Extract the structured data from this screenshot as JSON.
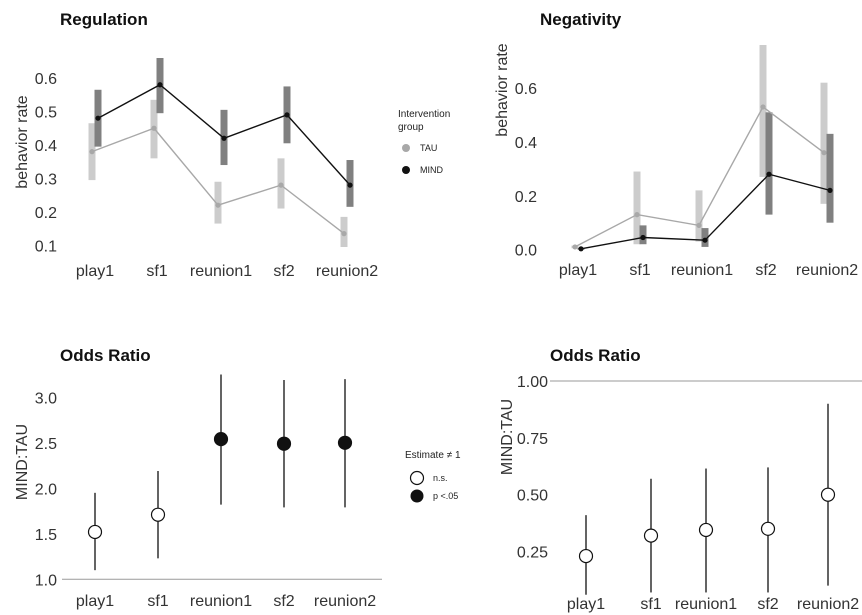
{
  "colors": {
    "tau": "#a8a8a8",
    "mind": "#111111",
    "tau_bar": "#cccccc",
    "mind_bar": "#808080",
    "axis": "#9a9a9a"
  },
  "legends": {
    "group": {
      "title_line1": "Intervention",
      "title_line2": "group",
      "items": [
        "TAU",
        "MIND"
      ]
    },
    "estimate": {
      "title": "Estimate ≠ 1",
      "items": [
        "n.s.",
        "p <.05"
      ]
    }
  },
  "chart_data": [
    {
      "type": "line",
      "title": "Regulation",
      "xlabel": "",
      "ylabel": "behavior rate",
      "categories": [
        "play1",
        "sf1",
        "reunion1",
        "sf2",
        "reunion2"
      ],
      "ylim": [
        0.08,
        0.66
      ],
      "yticks": [
        0.1,
        0.2,
        0.3,
        0.4,
        0.5,
        0.6
      ],
      "yticklabels": [
        "0.1",
        "0.2",
        "0.3",
        "0.4",
        "0.5",
        "0.6"
      ],
      "series": [
        {
          "name": "TAU",
          "values": [
            0.38,
            0.45,
            0.22,
            0.28,
            0.135
          ],
          "lower": [
            0.295,
            0.36,
            0.165,
            0.21,
            0.095
          ],
          "upper": [
            0.465,
            0.535,
            0.29,
            0.36,
            0.185
          ]
        },
        {
          "name": "MIND",
          "values": [
            0.48,
            0.58,
            0.42,
            0.49,
            0.28
          ],
          "lower": [
            0.395,
            0.495,
            0.34,
            0.405,
            0.215
          ],
          "upper": [
            0.565,
            0.66,
            0.505,
            0.575,
            0.355
          ]
        }
      ]
    },
    {
      "type": "line",
      "title": "Negativity",
      "xlabel": "",
      "ylabel": "behavior rate",
      "categories": [
        "play1",
        "sf1",
        "reunion1",
        "sf2",
        "reunion2"
      ],
      "ylim": [
        -0.02,
        0.76
      ],
      "yticks": [
        0.0,
        0.2,
        0.4,
        0.6
      ],
      "yticklabels": [
        "0.0",
        "0.2",
        "0.4",
        "0.6"
      ],
      "series": [
        {
          "name": "TAU",
          "values": [
            0.01,
            0.13,
            0.09,
            0.53,
            0.36
          ],
          "lower": [
            0.005,
            0.02,
            0.03,
            0.27,
            0.17
          ],
          "upper": [
            0.015,
            0.29,
            0.22,
            0.76,
            0.62
          ]
        },
        {
          "name": "MIND",
          "values": [
            0.003,
            0.045,
            0.035,
            0.28,
            0.22
          ],
          "lower": [
            0.0,
            0.02,
            0.01,
            0.13,
            0.1
          ],
          "upper": [
            0.006,
            0.09,
            0.08,
            0.51,
            0.43
          ]
        }
      ]
    },
    {
      "type": "scatter",
      "title": "Odds Ratio",
      "xlabel": "",
      "ylabel": "MIND:TAU",
      "categories": [
        "play1",
        "sf1",
        "reunion1",
        "sf2",
        "reunion2"
      ],
      "ylim": [
        0.97,
        3.3
      ],
      "yticks": [
        1.0,
        1.5,
        2.0,
        2.5,
        3.0
      ],
      "yticklabels": [
        "1.0",
        "1.5",
        "2.0",
        "2.5",
        "3.0"
      ],
      "reference_line": 1.0,
      "points": [
        {
          "x": "play1",
          "estimate": 1.52,
          "lower": 1.1,
          "upper": 1.95,
          "significant": false
        },
        {
          "x": "sf1",
          "estimate": 1.71,
          "lower": 1.23,
          "upper": 2.19,
          "significant": false
        },
        {
          "x": "reunion1",
          "estimate": 2.54,
          "lower": 1.82,
          "upper": 3.25,
          "significant": true
        },
        {
          "x": "sf2",
          "estimate": 2.49,
          "lower": 1.79,
          "upper": 3.19,
          "significant": true
        },
        {
          "x": "reunion2",
          "estimate": 2.5,
          "lower": 1.79,
          "upper": 3.2,
          "significant": true
        }
      ]
    },
    {
      "type": "scatter",
      "title": "Odds Ratio",
      "xlabel": "",
      "ylabel": "MIND:TAU",
      "categories": [
        "play1",
        "sf1",
        "reunion1",
        "sf2",
        "reunion2"
      ],
      "ylim": [
        0.05,
        1.0
      ],
      "yticks": [
        0.25,
        0.5,
        0.75,
        1.0
      ],
      "yticklabels": [
        "0.25",
        "0.50",
        "0.75",
        "1.00"
      ],
      "reference_line": 1.0,
      "points": [
        {
          "x": "play1",
          "estimate": 0.23,
          "lower": 0.06,
          "upper": 0.41,
          "significant": false
        },
        {
          "x": "sf1",
          "estimate": 0.32,
          "lower": 0.07,
          "upper": 0.57,
          "significant": false
        },
        {
          "x": "reunion1",
          "estimate": 0.345,
          "lower": 0.07,
          "upper": 0.615,
          "significant": false
        },
        {
          "x": "sf2",
          "estimate": 0.35,
          "lower": 0.07,
          "upper": 0.62,
          "significant": false
        },
        {
          "x": "reunion2",
          "estimate": 0.5,
          "lower": 0.1,
          "upper": 0.9,
          "significant": false
        }
      ]
    }
  ]
}
